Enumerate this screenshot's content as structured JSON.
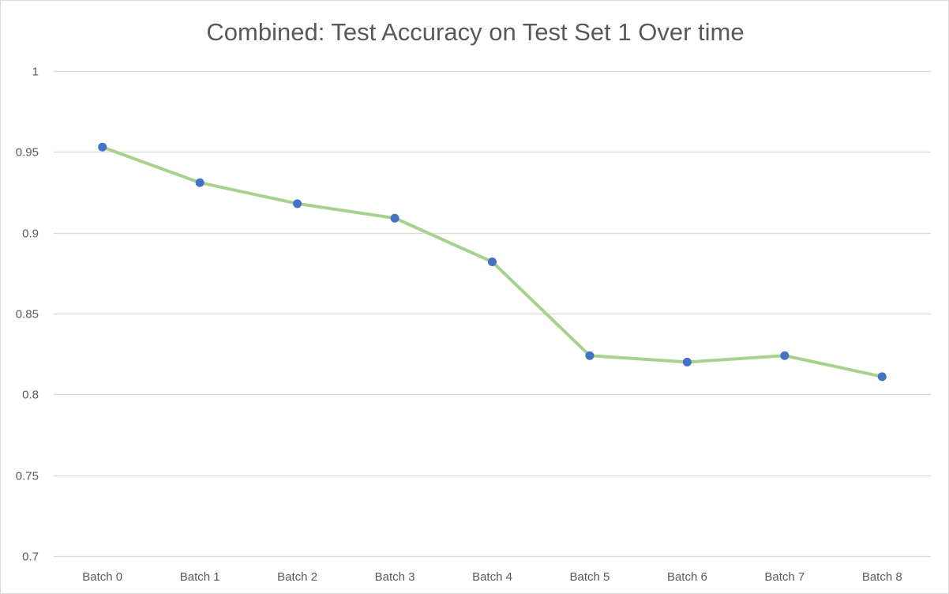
{
  "chart_data": {
    "type": "line",
    "title": "Combined: Test Accuracy on Test Set 1 Over time",
    "categories": [
      "Batch 0",
      "Batch 1",
      "Batch 2",
      "Batch 3",
      "Batch 4",
      "Batch 5",
      "Batch 6",
      "Batch 7",
      "Batch 8"
    ],
    "series": [
      {
        "values": [
          0.953,
          0.931,
          0.918,
          0.909,
          0.882,
          0.824,
          0.82,
          0.824,
          0.811
        ],
        "line_color": "#a9d18e",
        "marker_color": "#4472c4"
      }
    ],
    "ylim": [
      0.7,
      1
    ],
    "yticks": [
      0.7,
      0.75,
      0.8,
      0.85,
      0.9,
      0.95,
      1
    ],
    "ytick_labels": [
      "0.7",
      "0.75",
      "0.8",
      "0.85",
      "0.9",
      "0.95",
      "1"
    ],
    "grid": true,
    "legend": "none",
    "gridline_color": "#d9d9d9",
    "text_color": "#595959"
  }
}
